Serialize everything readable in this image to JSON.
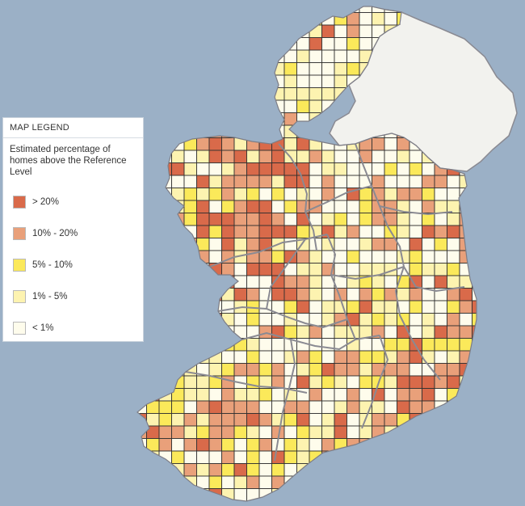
{
  "legend": {
    "title": "MAP LEGEND",
    "description": "Estimated percentage of homes above the Reference Level",
    "items": [
      {
        "label": "> 20%",
        "color": "#d96a4a"
      },
      {
        "label": "10% - 20%",
        "color": "#e9a07a"
      },
      {
        "label": "5% - 10%",
        "color": "#fbe95a"
      },
      {
        "label": "1% - 5%",
        "color": "#fdf3b0"
      },
      {
        "label": "< 1%",
        "color": "#fefcec"
      }
    ]
  },
  "colors": {
    "sea": "#9bb0c6",
    "land_outside": "#f2f2ee",
    "grid_line": "#303030",
    "border": "#8a8a92"
  }
}
